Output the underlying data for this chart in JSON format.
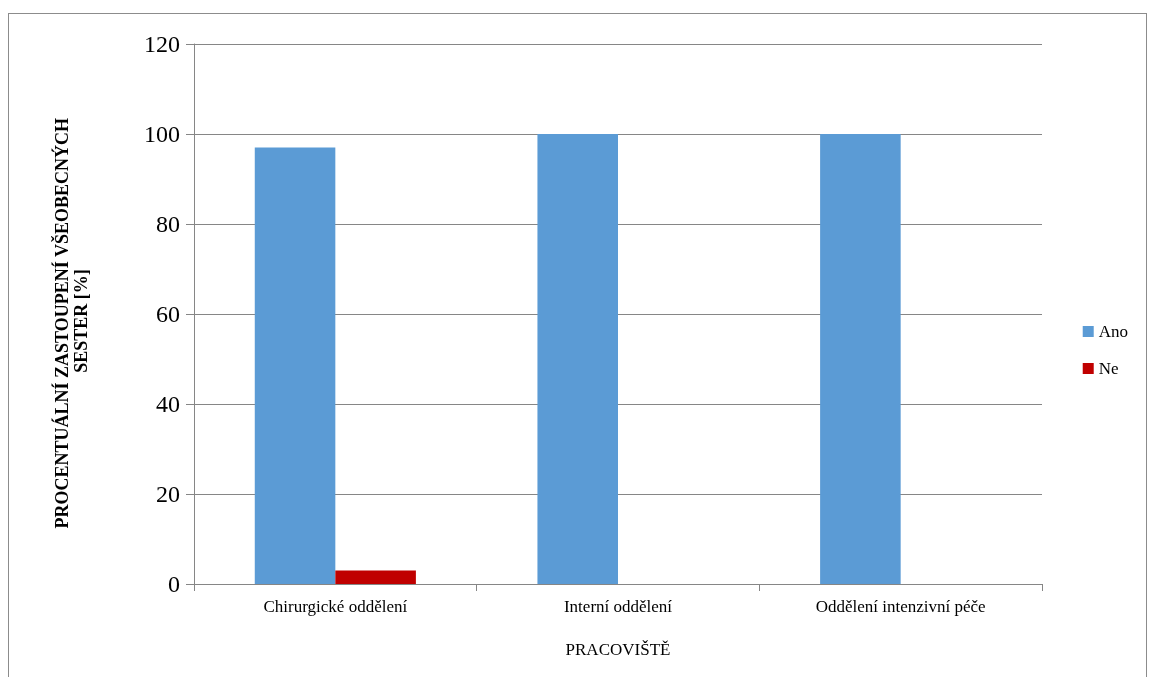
{
  "chart_data": {
    "type": "bar",
    "categories": [
      "Chirurgické oddělení",
      "Interní oddělení",
      "Oddělení intenzivní péče"
    ],
    "series": [
      {
        "name": "Ano",
        "color": "#5b9bd5",
        "values": [
          97,
          100,
          100
        ]
      },
      {
        "name": "Ne",
        "color": "#c00000",
        "values": [
          3,
          0,
          0
        ]
      }
    ],
    "xlabel": "PRACOVIŠTĚ",
    "ylabel": "PROCENTUÁLNÍ ZASTOUPENÍ VŠEOBECNÝCH SESTER [%]",
    "ylim": [
      0,
      120
    ],
    "yticks": [
      0,
      20,
      40,
      60,
      80,
      100,
      120
    ],
    "grid": "y",
    "legend": "right"
  }
}
